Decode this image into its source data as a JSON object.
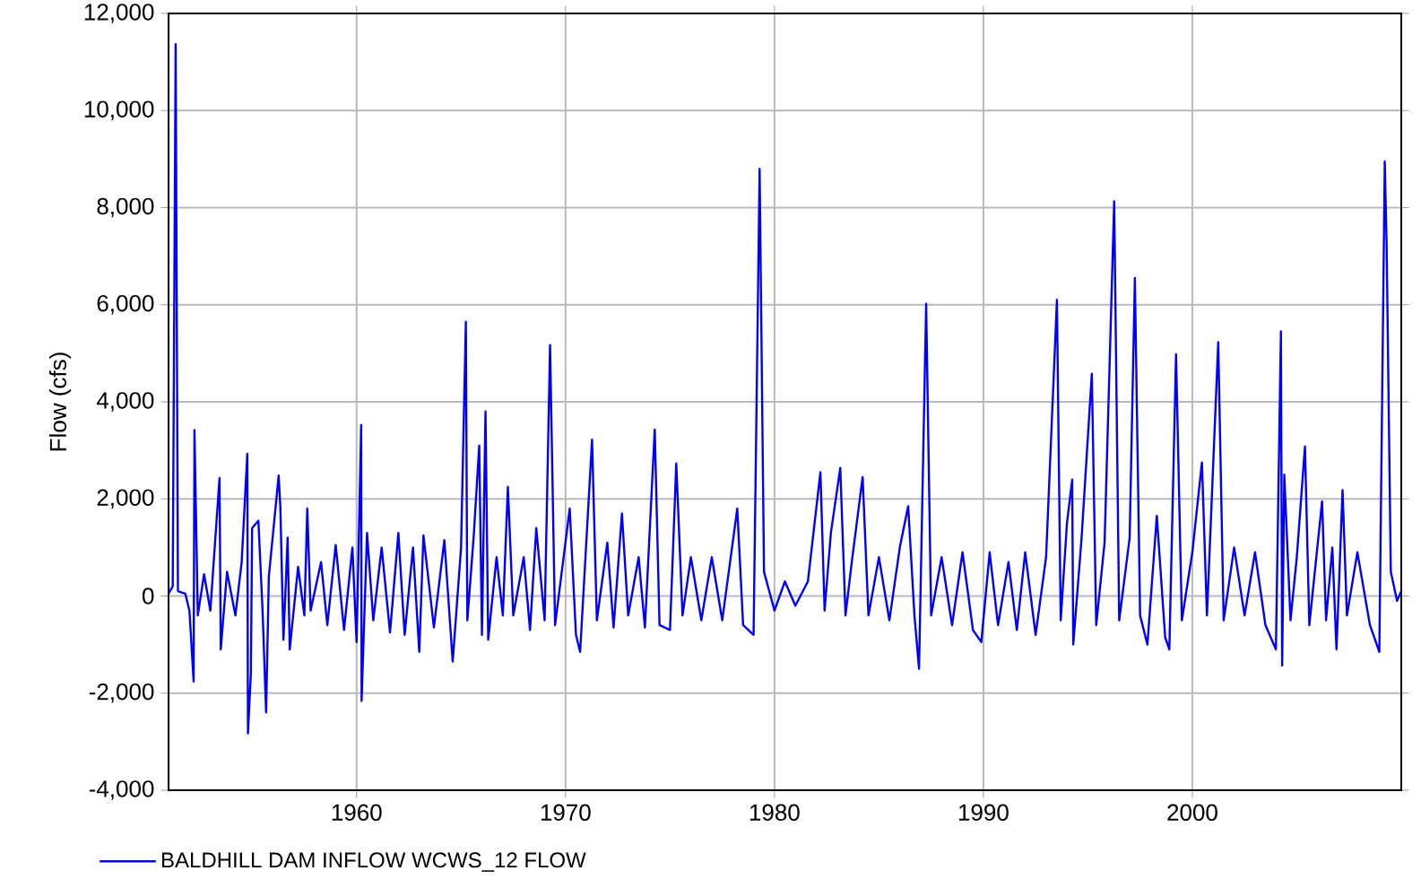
{
  "chart_data": {
    "type": "line",
    "ylabel": "Flow (cfs)",
    "xlim": [
      1951,
      2010
    ],
    "ylim": [
      -4000,
      12000
    ],
    "xticks": [
      1960,
      1970,
      1980,
      1990,
      2000
    ],
    "yticks": [
      {
        "value": -4000,
        "label": "-4,000"
      },
      {
        "value": -2000,
        "label": "-2,000"
      },
      {
        "value": 0,
        "label": "0"
      },
      {
        "value": 2000,
        "label": "2,000"
      },
      {
        "value": 4000,
        "label": "4,000"
      },
      {
        "value": 6000,
        "label": "6,000"
      },
      {
        "value": 8000,
        "label": "8,000"
      },
      {
        "value": 10000,
        "label": "10,000"
      },
      {
        "value": 12000,
        "label": "12,000"
      }
    ],
    "grid": true,
    "legend": "bottom",
    "marker": "none",
    "line_style": "solid",
    "series": [
      {
        "name": "BALDHILL DAM INFLOW WCWS_12 FLOW",
        "color": "#0000ff",
        "x": [
          1951.0,
          1951.2,
          1951.34,
          1951.45,
          1951.8,
          1952.0,
          1952.2,
          1952.24,
          1952.4,
          1952.7,
          1953.0,
          1953.44,
          1953.5,
          1953.8,
          1954.2,
          1954.5,
          1954.77,
          1954.8,
          1954.94,
          1955.0,
          1955.3,
          1955.5,
          1955.67,
          1955.8,
          1956.27,
          1956.35,
          1956.5,
          1956.7,
          1956.8,
          1957.2,
          1957.5,
          1957.64,
          1957.8,
          1958.3,
          1958.6,
          1959.0,
          1959.4,
          1959.8,
          1960.0,
          1960.22,
          1960.24,
          1960.5,
          1960.8,
          1961.2,
          1961.6,
          1962.0,
          1962.3,
          1962.7,
          1963.0,
          1963.2,
          1963.7,
          1964.2,
          1964.6,
          1965.0,
          1965.23,
          1965.3,
          1965.6,
          1965.87,
          1966.0,
          1966.17,
          1966.3,
          1966.7,
          1967.0,
          1967.24,
          1967.5,
          1968.0,
          1968.3,
          1968.6,
          1969.0,
          1969.26,
          1969.5,
          1970.2,
          1970.5,
          1970.7,
          1971.27,
          1971.5,
          1972.0,
          1972.3,
          1972.7,
          1973.0,
          1973.5,
          1973.8,
          1974.27,
          1974.5,
          1975.0,
          1975.3,
          1975.6,
          1976.0,
          1976.5,
          1977.0,
          1977.5,
          1978.22,
          1978.5,
          1979.0,
          1979.29,
          1979.5,
          1980.0,
          1980.5,
          1981.0,
          1981.6,
          1982.2,
          1982.4,
          1982.7,
          1983.15,
          1983.4,
          1983.7,
          1984.22,
          1984.5,
          1985.0,
          1985.5,
          1986.0,
          1986.4,
          1986.7,
          1986.92,
          1987.26,
          1987.5,
          1988.0,
          1988.5,
          1989.0,
          1989.5,
          1989.9,
          1990.3,
          1990.7,
          1991.2,
          1991.6,
          1992.0,
          1992.5,
          1993.0,
          1993.52,
          1993.7,
          1994.0,
          1994.25,
          1994.3,
          1994.7,
          1995.19,
          1995.4,
          1995.8,
          1996.26,
          1996.5,
          1997.0,
          1997.25,
          1997.5,
          1997.85,
          1998.3,
          1998.7,
          1998.9,
          1999.22,
          1999.5,
          2000.0,
          2000.46,
          2000.7,
          2001.24,
          2001.5,
          2002.0,
          2002.5,
          2003.0,
          2003.5,
          2004.0,
          2004.24,
          2004.3,
          2004.4,
          2004.7,
          2005.0,
          2005.39,
          2005.6,
          2006.21,
          2006.4,
          2006.7,
          2006.9,
          2007.19,
          2007.4,
          2007.9,
          2008.5,
          2008.95,
          2009.21,
          2009.3,
          2009.5,
          2009.8,
          2010.0
        ],
        "values": [
          50,
          200,
          11370,
          100,
          50,
          -300,
          -1760,
          3420,
          -400,
          450,
          -300,
          2430,
          -1100,
          500,
          -400,
          700,
          2930,
          -2830,
          -1600,
          1400,
          1550,
          -300,
          -2400,
          400,
          2480,
          1850,
          -900,
          1200,
          -1100,
          600,
          -400,
          1800,
          -300,
          700,
          -600,
          1050,
          -700,
          1000,
          -950,
          3520,
          -2160,
          1300,
          -500,
          1000,
          -750,
          1300,
          -800,
          1000,
          -1150,
          1250,
          -650,
          1150,
          -1350,
          1000,
          5650,
          -500,
          1200,
          3100,
          -800,
          3800,
          -900,
          800,
          -400,
          2250,
          -400,
          800,
          -700,
          1400,
          -500,
          5170,
          -600,
          1800,
          -800,
          -1150,
          3220,
          -500,
          1100,
          -650,
          1700,
          -400,
          800,
          -650,
          3430,
          -600,
          -700,
          2730,
          -400,
          800,
          -500,
          800,
          -500,
          1800,
          -600,
          -800,
          8800,
          500,
          -300,
          300,
          -200,
          300,
          2550,
          -300,
          1300,
          2640,
          -400,
          700,
          2450,
          -400,
          800,
          -500,
          1000,
          1850,
          -400,
          -1500,
          6020,
          -400,
          800,
          -600,
          900,
          -700,
          -950,
          900,
          -600,
          700,
          -700,
          900,
          -800,
          800,
          6100,
          -500,
          1500,
          2400,
          -1000,
          1200,
          4580,
          -600,
          1100,
          8130,
          -500,
          1200,
          6550,
          -400,
          -1000,
          1650,
          -850,
          -1100,
          4980,
          -500,
          900,
          2750,
          -400,
          5230,
          -500,
          1000,
          -400,
          900,
          -600,
          -1100,
          5450,
          -1430,
          2500,
          -500,
          800,
          3080,
          -600,
          1950,
          -500,
          1000,
          -1100,
          2180,
          -400,
          900,
          -600,
          -1150,
          8950,
          7200,
          500,
          -100,
          100
        ]
      }
    ]
  }
}
